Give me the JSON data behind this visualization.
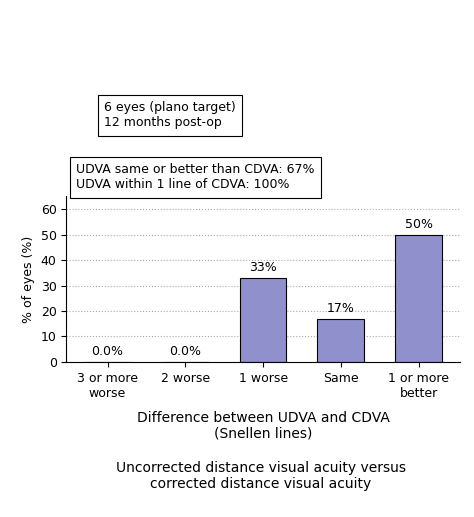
{
  "categories": [
    "3 or more\nworse",
    "2 worse",
    "1 worse",
    "Same",
    "1 or more\nbetter"
  ],
  "values": [
    0.0,
    0.0,
    33.0,
    17.0,
    50.0
  ],
  "bar_color": "#9090cc",
  "bar_edge_color": "#000000",
  "ylabel": "% of eyes (%)",
  "xlabel": "Difference between UDVA and CDVA\n(Snellen lines)",
  "subtitle": "Uncorrected distance visual acuity versus\ncorrected distance visual acuity",
  "ylim": [
    0,
    65
  ],
  "yticks": [
    0,
    10,
    20,
    30,
    40,
    50,
    60
  ],
  "annotation_labels": [
    "0.0%",
    "0.0%",
    "33%",
    "17%",
    "50%"
  ],
  "annotation_offsets": [
    1.5,
    1.5,
    1.5,
    1.5,
    1.5
  ],
  "box1_line1": "6 eyes (plano target)",
  "box1_line2": "12 months post-op",
  "box2_line1": "UDVA same or better than CDVA: 67%",
  "box2_line2": "UDVA within 1 line of CDVA: 100%",
  "background_color": "#ffffff",
  "grid_color": "#aaaaaa",
  "fontsize": 9,
  "bar_label_fontsize": 9,
  "subtitle_fontsize": 10,
  "xlabel_fontsize": 10
}
